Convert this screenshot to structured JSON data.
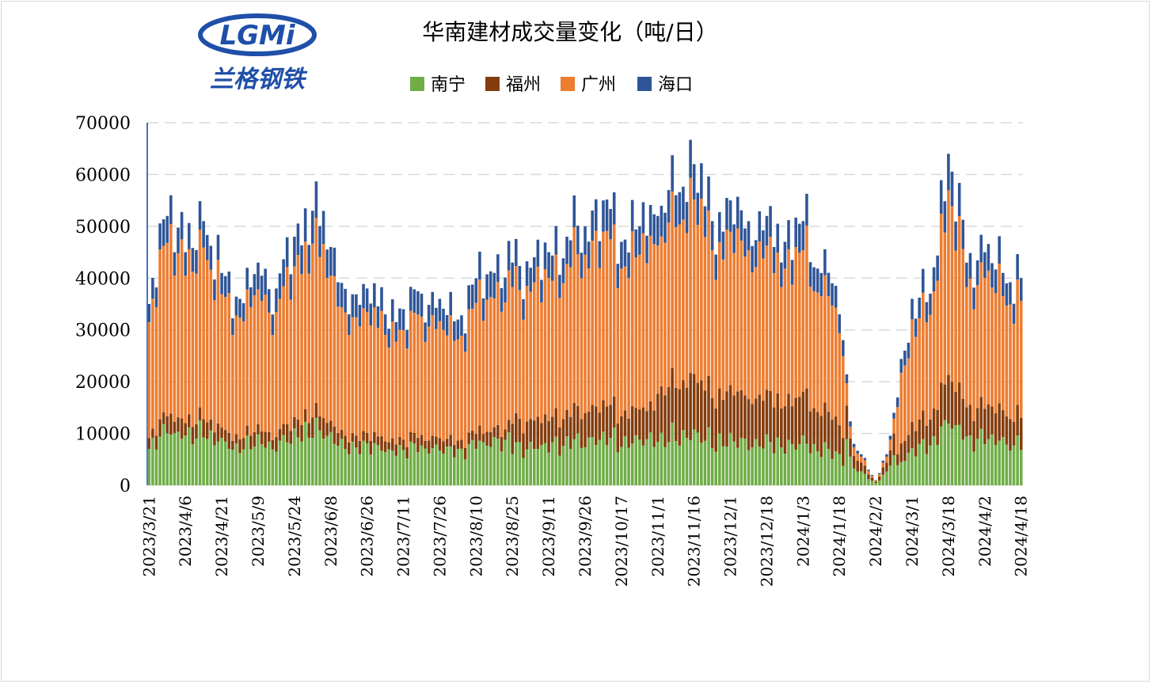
{
  "logo": {
    "text": "LGMi",
    "subtitle": "兰格钢铁",
    "colors": {
      "blue": "#1f4fa8",
      "red": "#d8262c"
    }
  },
  "chart_data": {
    "type": "bar",
    "stacked": true,
    "title": "华南建材成交量变化（吨/日）",
    "xlabel": "",
    "ylabel": "",
    "ylim": [
      0,
      70000
    ],
    "yticks": [
      0,
      10000,
      20000,
      30000,
      40000,
      50000,
      60000,
      70000
    ],
    "grid": "horizontal-dashed",
    "legend_position": "top",
    "x_tick_labels": [
      "2023/3/21",
      "2023/4/6",
      "2023/4/21",
      "2023/5/9",
      "2023/5/24",
      "2023/6/8",
      "2023/6/26",
      "2023/7/11",
      "2023/7/26",
      "2023/8/10",
      "2023/8/25",
      "2023/9/11",
      "2023/9/26",
      "2023/10/17",
      "2023/11/1",
      "2023/11/16",
      "2023/12/1",
      "2023/12/18",
      "2024/1/3",
      "2024/1/18",
      "2024/2/2",
      "2024/3/1",
      "2024/3/18",
      "2024/4/2",
      "2024/4/18"
    ],
    "x_tick_indices": [
      0,
      10,
      20,
      30,
      40,
      50,
      60,
      70,
      80,
      90,
      100,
      110,
      120,
      130,
      140,
      150,
      160,
      170,
      180,
      190,
      200,
      210,
      220,
      230,
      240
    ],
    "series": [
      {
        "name": "南宁",
        "color": "#70ad47"
      },
      {
        "name": "福州",
        "color": "#843c0c"
      },
      {
        "name": "广州",
        "color": "#ed7d31"
      },
      {
        "name": "海口",
        "color": "#2f5597"
      }
    ],
    "anchor_totals": {
      "indices": [
        0,
        5,
        6,
        10,
        15,
        20,
        25,
        30,
        35,
        40,
        45,
        50,
        55,
        60,
        65,
        70,
        75,
        80,
        85,
        90,
        95,
        100,
        105,
        110,
        115,
        120,
        125,
        130,
        135,
        140,
        145,
        150,
        155,
        160,
        165,
        170,
        175,
        180,
        185,
        188,
        190,
        194,
        196,
        198,
        200,
        203,
        205,
        208,
        210,
        215,
        220,
        225,
        230,
        235,
        240
      ],
      "values": [
        35000,
        52000,
        56000,
        45000,
        51000,
        41000,
        36000,
        43000,
        38000,
        48000,
        53000,
        46000,
        33000,
        38000,
        33000,
        34000,
        37000,
        36000,
        32000,
        40000,
        41000,
        43000,
        42000,
        45000,
        48000,
        50000,
        55000,
        47000,
        50000,
        52000,
        56000,
        62000,
        51000,
        55000,
        51000,
        52000,
        47000,
        51000,
        41000,
        39000,
        33000,
        8000,
        6000,
        3000,
        1000,
        6000,
        14000,
        26000,
        36000,
        37000,
        64000,
        43000,
        45000,
        41000,
        40000
      ]
    },
    "composition": [
      {
        "from": 0,
        "to": 30,
        "南宁": 0.2,
        "福州": 0.06,
        "广州": 0.64,
        "海口": 0.1
      },
      {
        "from": 30,
        "to": 100,
        "南宁": 0.2,
        "福州": 0.06,
        "广州": 0.62,
        "海口": 0.12
      },
      {
        "from": 100,
        "to": 140,
        "南宁": 0.17,
        "福州": 0.12,
        "广州": 0.6,
        "海口": 0.11
      },
      {
        "from": 140,
        "to": 192,
        "南宁": 0.16,
        "福州": 0.18,
        "广州": 0.55,
        "海口": 0.11
      },
      {
        "from": 192,
        "to": 206,
        "南宁": 0.42,
        "福州": 0.3,
        "广州": 0.2,
        "海口": 0.08
      },
      {
        "from": 206,
        "to": 241,
        "南宁": 0.2,
        "福州": 0.14,
        "广州": 0.55,
        "海口": 0.11
      }
    ],
    "n_points": 241
  }
}
